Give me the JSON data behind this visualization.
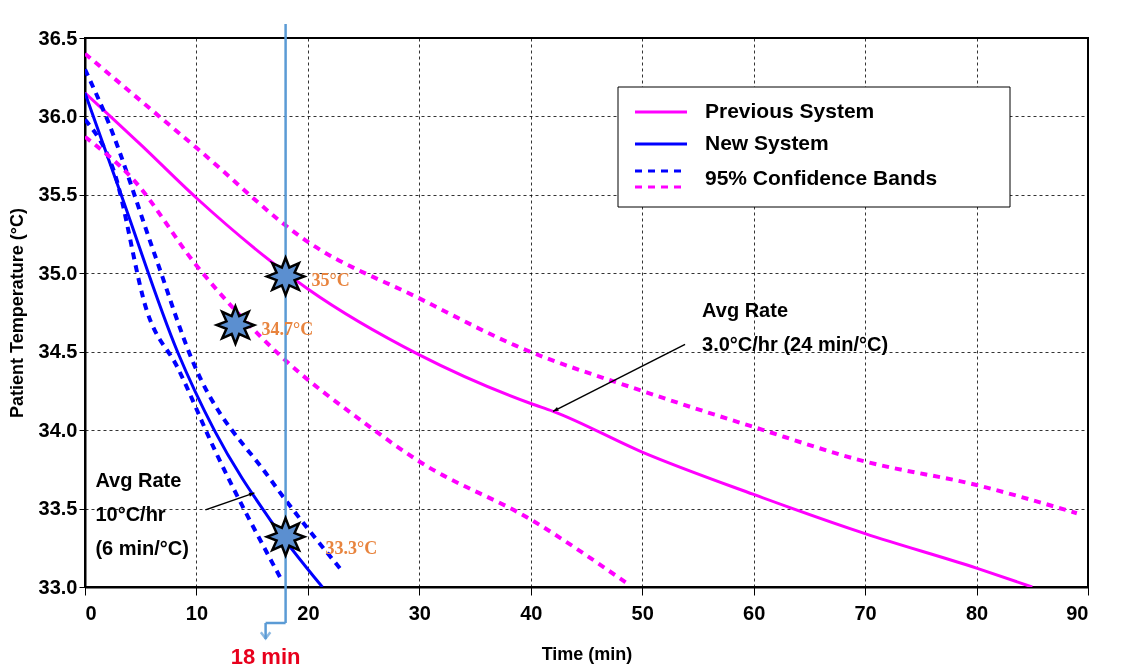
{
  "chart_data": {
    "type": "line",
    "xlabel": "Time (min)",
    "ylabel": "Patient Temperature (°C)",
    "xlim": [
      0,
      90
    ],
    "ylim": [
      33,
      36.5
    ],
    "xticks": [
      0,
      10,
      20,
      30,
      40,
      50,
      60,
      70,
      80,
      90
    ],
    "yticks": [
      {
        "value": 33,
        "label": "33.0"
      },
      33.5,
      {
        "value": 34,
        "label": "34.0"
      },
      34.5,
      {
        "value": 35,
        "label": "35.0"
      },
      35.5,
      {
        "value": 36,
        "label": "36.0"
      },
      36.5
    ],
    "grid": true,
    "legend": "top right",
    "series": [
      {
        "name": "Previous System",
        "color": "#ff00ff",
        "line_style": "solid",
        "x": [
          0,
          5,
          10,
          20,
          30,
          40,
          42,
          50,
          60,
          70,
          80,
          85
        ],
        "values": [
          36.15,
          35.82,
          35.48,
          34.9,
          34.48,
          34.17,
          34.12,
          33.86,
          33.59,
          33.34,
          33.12,
          33.0
        ]
      },
      {
        "name": "New System",
        "color": "#0000ff",
        "line_style": "solid",
        "x": [
          0,
          3.3,
          8.3,
          11.6,
          16.6,
          21.3
        ],
        "values": [
          36.15,
          35.49,
          34.5,
          34.0,
          33.43,
          33.0
        ]
      },
      {
        "name": "95% Confidence Bands",
        "color": "#0000ff",
        "line_style": "dashed",
        "x": [
          0,
          2,
          6.3,
          9.6,
          16.6,
          23.1
        ],
        "values": [
          36.3,
          35.98,
          35.11,
          34.45,
          33.69,
          33.1
        ]
      },
      {
        "color": "#ff00ff",
        "line_style": "dashed",
        "x": [
          0,
          10,
          20,
          30,
          38.6,
          50,
          60,
          70,
          80,
          89
        ],
        "values": [
          36.4,
          35.8,
          35.2,
          34.84,
          34.54,
          34.25,
          34.02,
          33.8,
          33.65,
          33.47
        ]
      },
      {
        "color": "#0000ff",
        "line_style": "dashed",
        "x": [
          0,
          2.6,
          5.6,
          8.3,
          11.6,
          17.6
        ],
        "values": [
          35.98,
          35.65,
          34.75,
          34.4,
          33.88,
          33.05
        ]
      },
      {
        "color": "#ff00ff",
        "line_style": "dashed",
        "x": [
          0,
          4.3,
          10,
          17.6,
          25,
          30,
          40,
          48.5
        ],
        "values": [
          35.87,
          35.6,
          35.05,
          34.47,
          34.05,
          33.8,
          33.43,
          33.03
        ]
      },
      {
        "type": "scatter",
        "color": "#5b8fd0",
        "marker": "star",
        "x": [
          18,
          13.5,
          18
        ],
        "values": [
          34.98,
          34.67,
          33.32
        ]
      }
    ],
    "ref_lines": [
      {
        "axis": "x",
        "value": 18,
        "label": "18 min",
        "color": "#5b9bd5"
      }
    ],
    "annotations": [
      {
        "text": "35°C",
        "x": 18,
        "y": 34.98
      },
      {
        "text": "34.7°C",
        "x": 13.5,
        "y": 34.67
      },
      {
        "text": "33.3°C",
        "x": 18,
        "y": 33.32
      },
      {
        "text": "Avg Rate\n3.0°C/hr (24 min/°C)",
        "x": 42,
        "y": 34.12
      },
      {
        "text": "Avg Rate\n10°C/hr\n(6 min/°C)",
        "x": 15.2,
        "y": 33.6
      }
    ]
  }
}
